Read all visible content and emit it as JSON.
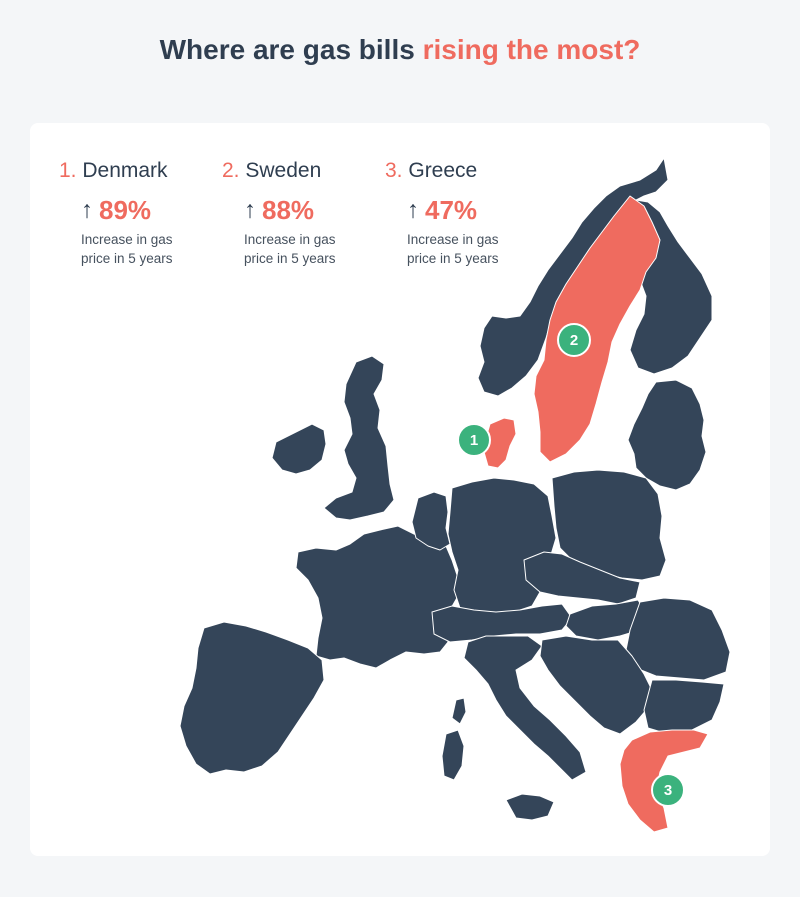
{
  "title": {
    "part1": "Where are gas bills ",
    "part2": "rising the most?"
  },
  "colors": {
    "highlight": "#ef6b5f",
    "land": "#344559",
    "marker": "#3bb27d",
    "text": "#2f3e50"
  },
  "stats": [
    {
      "rank": "1.",
      "country": "Denmark",
      "arrow": "↑",
      "value": "89%",
      "desc": "Increase in gas price in 5 years"
    },
    {
      "rank": "2.",
      "country": "Sweden",
      "arrow": "↑",
      "value": "88%",
      "desc": "Increase in gas price in 5 years"
    },
    {
      "rank": "3.",
      "country": "Greece",
      "arrow": "↑",
      "value": "47%",
      "desc": "Increase in gas price in 5 years"
    }
  ],
  "markers": [
    {
      "label": "1",
      "country": "Denmark"
    },
    {
      "label": "2",
      "country": "Sweden"
    },
    {
      "label": "3",
      "country": "Greece"
    }
  ]
}
